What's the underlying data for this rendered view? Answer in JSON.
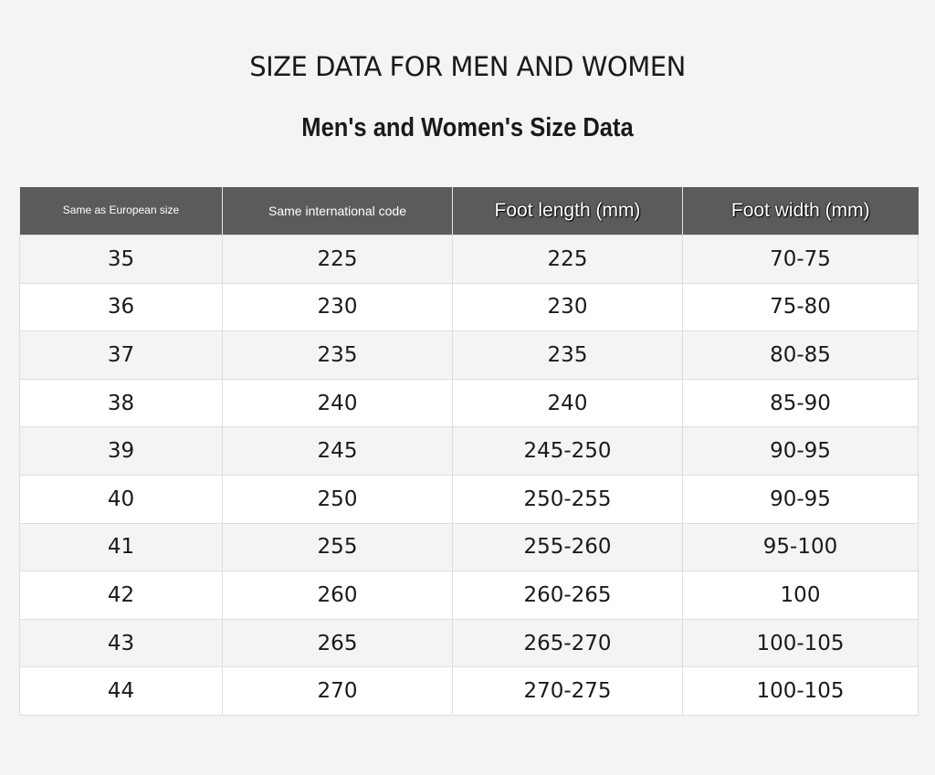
{
  "header": {
    "title": "SIZE DATA FOR MEN AND WOMEN",
    "subtitle": "Men's and Women's Size Data"
  },
  "table": {
    "columns": [
      "Same as European size",
      "Same international code",
      "Foot length (mm)",
      "Foot width (mm)"
    ],
    "rows": [
      [
        "35",
        "225",
        "225",
        "70-75"
      ],
      [
        "36",
        "230",
        "230",
        "75-80"
      ],
      [
        "37",
        "235",
        "235",
        "80-85"
      ],
      [
        "38",
        "240",
        "240",
        "85-90"
      ],
      [
        "39",
        "245",
        "245-250",
        "90-95"
      ],
      [
        "40",
        "250",
        "250-255",
        "90-95"
      ],
      [
        "41",
        "255",
        "255-260",
        "95-100"
      ],
      [
        "42",
        "260",
        "260-265",
        "100"
      ],
      [
        "43",
        "265",
        "265-270",
        "100-105"
      ],
      [
        "44",
        "270",
        "270-275",
        "100-105"
      ]
    ]
  }
}
